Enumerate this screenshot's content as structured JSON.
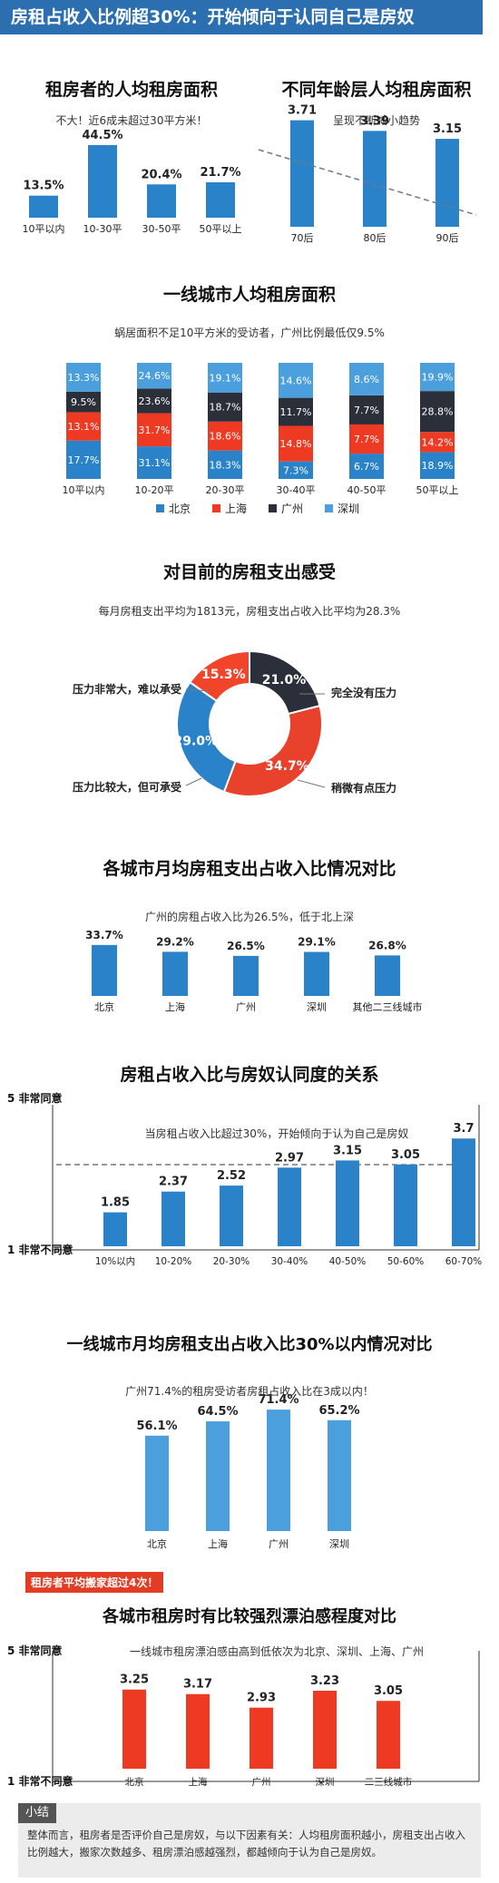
{
  "banner": "房租占收入比例超30%：开始倾向于认同自己是房奴",
  "colors": {
    "blue": "#2a82c9",
    "red": "#ee3a23",
    "dark": "#2a2f3a",
    "light": "#4a9fdc"
  },
  "sections": {
    "s1_title": "租房者的人均租房面积",
    "s1_sub": "不大！近6成未超过30平方米！",
    "s2_title": "不同年龄层人均租房面积",
    "s2_sub": "呈现不断减小趋势",
    "s3_title": "一线城市人均租房面积",
    "s3_sub": "蜗居面积不足10平方米的受访者，广州比例最低仅9.5%",
    "s4_title": "对目前的房租支出感受",
    "s4_sub": "每月房租支出平均为1813元，房租支出占收入比平均为28.3%",
    "s5_title": "各城市月均房租支出占收入比情况对比",
    "s5_sub": "广州的房租占收入比为26.5%，低于北上深",
    "s6_title": "房租占收入比与房奴认同度的关系",
    "s6_sub": "当房租占收入比超过30%，开始倾向于认为自己是房奴",
    "s7_title": "一线城市月均房租支出占收入比30%以内情况对比",
    "s7_sub": "广州71.4%的租房受访者房租占收入比在3成以内！",
    "s8_tag": "租房者平均搬家超过4次！",
    "s8_title": "各城市租房时有比较强烈漂泊感程度对比",
    "s8_sub": "一线城市租房漂泊感由高到低依次为北京、深圳、上海、广州",
    "summary_title": "小结",
    "summary_text": "整体而言，租房者是否评价自己是房奴，与以下因素有关：人均租房面积越小，房租支出占收入比例越大，搬家次数越多、租房漂泊感越强烈，都越倾向于认为自己是房奴。"
  },
  "chart_data": [
    {
      "id": "area",
      "type": "bar",
      "categories": [
        "10平以内",
        "10-30平",
        "30-50平",
        "50平以上"
      ],
      "values": [
        13.5,
        44.5,
        20.4,
        21.7
      ],
      "labels": [
        "13.5%",
        "44.5%",
        "20.4%",
        "21.7%"
      ]
    },
    {
      "id": "age",
      "type": "bar",
      "categories": [
        "70后",
        "80后",
        "90后"
      ],
      "values": [
        3.71,
        3.39,
        3.15
      ],
      "labels": [
        "3.71",
        "3.39",
        "3.15"
      ],
      "trendline": true
    },
    {
      "id": "city_area",
      "type": "bar",
      "stacked": true,
      "categories": [
        "10平以内",
        "10-20平",
        "20-30平",
        "30-40平",
        "40-50平",
        "50平以上"
      ],
      "series": [
        {
          "name": "北京",
          "values": [
            17.7,
            31.1,
            18.3,
            7.3,
            6.7,
            18.9
          ]
        },
        {
          "name": "上海",
          "values": [
            13.1,
            31.7,
            18.6,
            14.8,
            7.7,
            14.2
          ]
        },
        {
          "name": "广州",
          "values": [
            9.5,
            23.6,
            18.7,
            11.7,
            7.7,
            28.8
          ]
        },
        {
          "name": "深圳",
          "values": [
            13.3,
            24.6,
            19.1,
            14.6,
            8.6,
            19.9
          ]
        }
      ]
    },
    {
      "id": "feeling",
      "type": "pie",
      "donut": true,
      "slices": [
        {
          "label": "完全没有压力",
          "value": 21.0
        },
        {
          "label": "稍微有点压力",
          "value": 34.7
        },
        {
          "label": "压力比较大，但可承受",
          "value": 29.0
        },
        {
          "label": "压力非常大，难以承受",
          "value": 15.3
        }
      ]
    },
    {
      "id": "ratio",
      "type": "bar",
      "categories": [
        "北京",
        "上海",
        "广州",
        "深圳",
        "其他二三线城市"
      ],
      "values": [
        33.7,
        29.2,
        26.5,
        29.1,
        26.8
      ],
      "labels": [
        "33.7%",
        "29.2%",
        "26.5%",
        "29.1%",
        "26.8%"
      ]
    },
    {
      "id": "slave",
      "type": "bar",
      "categories": [
        "10%以内",
        "10-20%",
        "20-30%",
        "30-40%",
        "40-50%",
        "50-60%",
        "60-70%"
      ],
      "values": [
        1.85,
        2.37,
        2.52,
        2.97,
        3.15,
        3.05,
        3.7
      ],
      "labels": [
        "1.85",
        "2.37",
        "2.52",
        "2.97",
        "3.15",
        "3.05",
        "3.7"
      ],
      "ytop": "5 非常同意",
      "ybottom": "1 非常不同意",
      "ylim": [
        1,
        5
      ],
      "reference": 3
    },
    {
      "id": "within30",
      "type": "bar",
      "categories": [
        "北京",
        "上海",
        "广州",
        "深圳"
      ],
      "values": [
        56.1,
        64.5,
        71.4,
        65.2
      ],
      "labels": [
        "56.1%",
        "64.5%",
        "71.4%",
        "65.2%"
      ]
    },
    {
      "id": "drift",
      "type": "bar",
      "categories": [
        "北京",
        "上海",
        "广州",
        "深圳",
        "二三线城市"
      ],
      "values": [
        3.25,
        3.17,
        2.93,
        3.23,
        3.05
      ],
      "labels": [
        "3.25",
        "3.17",
        "2.93",
        "3.23",
        "3.05"
      ],
      "ytop": "5 非常同意",
      "ybottom": "1 非常不同意",
      "ylim": [
        1,
        5
      ]
    }
  ]
}
